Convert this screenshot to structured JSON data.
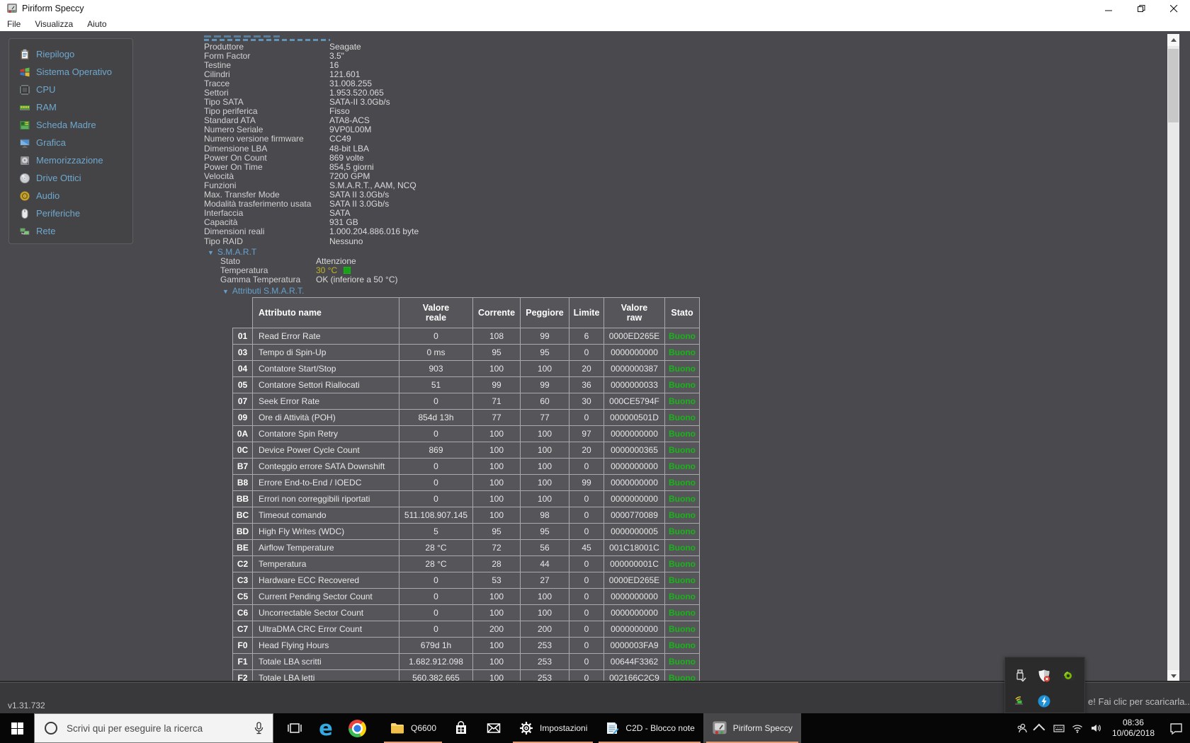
{
  "colors": {
    "accent_blue": "#64a1cd",
    "status_good": "#17b517",
    "warn_yellow": "#beb224",
    "taskbar_underline": "#e59a72",
    "content_bg": "#4a4a4e"
  },
  "window": {
    "title": "Piriform Speccy",
    "menu": [
      "File",
      "Visualizza",
      "Aiuto"
    ],
    "version": "v1.31.732"
  },
  "sidebar": {
    "items": [
      {
        "label": "Riepilogo",
        "icon": "clipboard"
      },
      {
        "label": "Sistema Operativo",
        "icon": "windows-flag"
      },
      {
        "label": "CPU",
        "icon": "cpu-chip"
      },
      {
        "label": "RAM",
        "icon": "ram-stick"
      },
      {
        "label": "Scheda Madre",
        "icon": "motherboard"
      },
      {
        "label": "Grafica",
        "icon": "monitor"
      },
      {
        "label": "Memorizzazione",
        "icon": "hdd"
      },
      {
        "label": "Drive Ottici",
        "icon": "cd-disc"
      },
      {
        "label": "Audio",
        "icon": "speaker-gold"
      },
      {
        "label": "Periferiche",
        "icon": "mouse"
      },
      {
        "label": "Rete",
        "icon": "network"
      }
    ]
  },
  "details": {
    "rows": [
      {
        "label": "Produttore",
        "value": "Seagate"
      },
      {
        "label": "Form Factor",
        "value": "3.5\""
      },
      {
        "label": "Testine",
        "value": "16"
      },
      {
        "label": "Cilindri",
        "value": "121.601"
      },
      {
        "label": "Tracce",
        "value": "31.008.255"
      },
      {
        "label": "Settori",
        "value": "1.953.520.065"
      },
      {
        "label": "Tipo SATA",
        "value": "SATA-II 3.0Gb/s"
      },
      {
        "label": "Tipo periferica",
        "value": "Fisso"
      },
      {
        "label": "Standard ATA",
        "value": "ATA8-ACS"
      },
      {
        "label": "Numero Seriale",
        "value": "9VP0L00M"
      },
      {
        "label": "Numero versione firmware",
        "value": "CC49"
      },
      {
        "label": "Dimensione LBA",
        "value": "48-bit LBA"
      },
      {
        "label": "Power On Count",
        "value": "869 volte"
      },
      {
        "label": "Power On Time",
        "value": "854,5 giorni"
      },
      {
        "label": "Velocità",
        "value": "7200 GPM"
      },
      {
        "label": "Funzioni",
        "value": "S.M.A.R.T., AAM, NCQ"
      },
      {
        "label": "Max. Transfer Mode",
        "value": "SATA II 3.0Gb/s"
      },
      {
        "label": "Modalità trasferimento usata",
        "value": "SATA II 3.0Gb/s"
      },
      {
        "label": "Interfaccia",
        "value": "SATA"
      },
      {
        "label": "Capacità",
        "value": "931 GB"
      },
      {
        "label": "Dimensioni reali",
        "value": "1.000.204.886.016 byte"
      },
      {
        "label": "Tipo RAID",
        "value": "Nessuno"
      }
    ]
  },
  "smart": {
    "section_label": "S.M.A.R.T",
    "info": [
      {
        "label": "Stato",
        "value": "Attenzione",
        "cls": ""
      },
      {
        "label": "Temperatura",
        "value": "30 °C",
        "cls": "val-yellow",
        "icon": "temp-chip"
      },
      {
        "label": "Gamma Temperatura",
        "value": "OK (inferiore a 50 °C)",
        "cls": ""
      }
    ],
    "attributes_label": "Attributi S.M.A.R.T.",
    "table": {
      "headers": [
        "Attributo name",
        "Valore reale",
        "Corrente",
        "Peggiore",
        "Limite",
        "Valore raw",
        "Stato"
      ],
      "rows": [
        {
          "id": "01",
          "name": "Read Error Rate",
          "real": "0",
          "current": "108",
          "worst": "99",
          "limit": "6",
          "raw": "0000ED265E",
          "status": "Buono"
        },
        {
          "id": "03",
          "name": "Tempo di Spin-Up",
          "real": "0 ms",
          "current": "95",
          "worst": "95",
          "limit": "0",
          "raw": "0000000000",
          "status": "Buono"
        },
        {
          "id": "04",
          "name": "Contatore Start/Stop",
          "real": "903",
          "current": "100",
          "worst": "100",
          "limit": "20",
          "raw": "0000000387",
          "status": "Buono"
        },
        {
          "id": "05",
          "name": "Contatore Settori Riallocati",
          "real": "51",
          "current": "99",
          "worst": "99",
          "limit": "36",
          "raw": "0000000033",
          "status": "Buono"
        },
        {
          "id": "07",
          "name": "Seek Error Rate",
          "real": "0",
          "current": "71",
          "worst": "60",
          "limit": "30",
          "raw": "000CE5794F",
          "status": "Buono"
        },
        {
          "id": "09",
          "name": "Ore di Attività (POH)",
          "real": "854d 13h",
          "current": "77",
          "worst": "77",
          "limit": "0",
          "raw": "000000501D",
          "status": "Buono"
        },
        {
          "id": "0A",
          "name": "Contatore Spin Retry",
          "real": "0",
          "current": "100",
          "worst": "100",
          "limit": "97",
          "raw": "0000000000",
          "status": "Buono"
        },
        {
          "id": "0C",
          "name": "Device Power Cycle Count",
          "real": "869",
          "current": "100",
          "worst": "100",
          "limit": "20",
          "raw": "0000000365",
          "status": "Buono"
        },
        {
          "id": "B7",
          "name": "Conteggio errore SATA Downshift",
          "real": "0",
          "current": "100",
          "worst": "100",
          "limit": "0",
          "raw": "0000000000",
          "status": "Buono"
        },
        {
          "id": "B8",
          "name": "Errore End-to-End / IOEDC",
          "real": "0",
          "current": "100",
          "worst": "100",
          "limit": "99",
          "raw": "0000000000",
          "status": "Buono"
        },
        {
          "id": "BB",
          "name": "Errori non correggibili riportati",
          "real": "0",
          "current": "100",
          "worst": "100",
          "limit": "0",
          "raw": "0000000000",
          "status": "Buono"
        },
        {
          "id": "BC",
          "name": "Timeout comando",
          "real": "511.108.907.145",
          "current": "100",
          "worst": "98",
          "limit": "0",
          "raw": "0000770089",
          "status": "Buono"
        },
        {
          "id": "BD",
          "name": "High Fly Writes (WDC)",
          "real": "5",
          "current": "95",
          "worst": "95",
          "limit": "0",
          "raw": "0000000005",
          "status": "Buono"
        },
        {
          "id": "BE",
          "name": "Airflow Temperature",
          "real": "28 °C",
          "current": "72",
          "worst": "56",
          "limit": "45",
          "raw": "001C18001C",
          "status": "Buono"
        },
        {
          "id": "C2",
          "name": "Temperatura",
          "real": "28 °C",
          "current": "28",
          "worst": "44",
          "limit": "0",
          "raw": "000000001C",
          "status": "Buono"
        },
        {
          "id": "C3",
          "name": "Hardware ECC Recovered",
          "real": "0",
          "current": "53",
          "worst": "27",
          "limit": "0",
          "raw": "0000ED265E",
          "status": "Buono"
        },
        {
          "id": "C5",
          "name": "Current Pending Sector Count",
          "real": "0",
          "current": "100",
          "worst": "100",
          "limit": "0",
          "raw": "0000000000",
          "status": "Buono"
        },
        {
          "id": "C6",
          "name": "Uncorrectable Sector Count",
          "real": "0",
          "current": "100",
          "worst": "100",
          "limit": "0",
          "raw": "0000000000",
          "status": "Buono"
        },
        {
          "id": "C7",
          "name": "UltraDMA CRC Error Count",
          "real": "0",
          "current": "200",
          "worst": "200",
          "limit": "0",
          "raw": "0000000000",
          "status": "Buono"
        },
        {
          "id": "F0",
          "name": "Head Flying Hours",
          "real": "679d 1h",
          "current": "100",
          "worst": "253",
          "limit": "0",
          "raw": "0000003FA9",
          "status": "Buono"
        },
        {
          "id": "F1",
          "name": "Totale LBA scritti",
          "real": "1.682.912.098",
          "current": "100",
          "worst": "253",
          "limit": "0",
          "raw": "00644F3362",
          "status": "Buono"
        },
        {
          "id": "F2",
          "name": "Totale LBA letti",
          "real": "560.382.665",
          "current": "100",
          "worst": "253",
          "limit": "0",
          "raw": "002166C2C9",
          "status": "Buono"
        }
      ]
    }
  },
  "toast": {
    "text": "e! Fai clic per scaricarla..."
  },
  "tray_flyout": {
    "icons": [
      "usb",
      "defender",
      "nvidia",
      "net-adapter",
      "thunderbolt"
    ]
  },
  "taskbar": {
    "search_placeholder": "Scrivi qui per eseguire la ricerca",
    "apps": [
      {
        "icon": "folder",
        "label": "Q6600",
        "cls": "open"
      },
      {
        "icon": "store",
        "label": "",
        "cls": ""
      },
      {
        "icon": "mail",
        "label": "",
        "cls": ""
      },
      {
        "icon": "gear",
        "label": "Impostazioni",
        "cls": "open"
      },
      {
        "icon": "notepad",
        "label": "C2D - Blocco note",
        "cls": "open"
      },
      {
        "icon": "speccy",
        "label": "Piriform Speccy",
        "cls": "open active"
      }
    ],
    "clock": {
      "time": "08:36",
      "date": "10/06/2018"
    }
  }
}
